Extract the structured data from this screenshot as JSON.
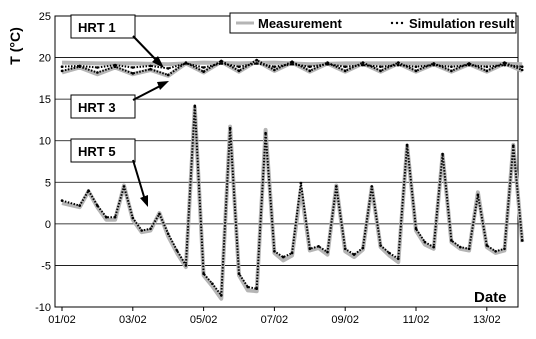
{
  "chart_data": {
    "type": "line",
    "title": "",
    "xlabel": "Date",
    "ylabel": "T (°C)",
    "ylim": [
      -10,
      25
    ],
    "yticks": [
      -10,
      -5,
      0,
      5,
      10,
      15,
      20,
      25
    ],
    "ytick_labels": [
      "-10",
      "-5",
      "0",
      "5",
      "10",
      "15",
      "20",
      "25"
    ],
    "xlim": [
      "01/02",
      "14/02"
    ],
    "xticks": [
      "01/02",
      "03/02",
      "05/02",
      "07/02",
      "09/02",
      "11/02",
      "13/02"
    ],
    "grid": "horizontal",
    "legend": {
      "placement": "top",
      "entries": [
        "Measurement",
        "Simulation result"
      ]
    },
    "annotations": [
      "HRT 1",
      "HRT 3",
      "HRT 5"
    ],
    "colors": {
      "measurement": "#b5b5b5",
      "simulation": "#000000",
      "grid": "#000000"
    },
    "series": [
      {
        "name": "Measurement",
        "curves": [
          {
            "label": "HRT 1",
            "points": [
              [
                "01/02",
                19.4
              ],
              [
                "02/02",
                19.3
              ],
              [
                "03/02",
                19.3
              ],
              [
                "04/02",
                19.2
              ],
              [
                "05/02",
                19.4
              ],
              [
                "06/02",
                19.3
              ],
              [
                "07/02",
                19.4
              ],
              [
                "08/02",
                19.2
              ],
              [
                "09/02",
                19.3
              ],
              [
                "10/02",
                19.3
              ],
              [
                "11/02",
                19.3
              ],
              [
                "12/02",
                19.3
              ],
              [
                "13/02",
                19.3
              ],
              [
                "14/02",
                19.2
              ]
            ]
          },
          {
            "label": "HRT 3",
            "points": [
              [
                "01/02",
                18.2
              ],
              [
                "01/12",
                18.8
              ],
              [
                "02/00",
                18.0
              ],
              [
                "02/12",
                18.8
              ],
              [
                "03/00",
                18.0
              ],
              [
                "03/12",
                18.5
              ],
              [
                "04/00",
                17.8
              ],
              [
                "04/12",
                19.3
              ],
              [
                "05/00",
                18.2
              ],
              [
                "05/12",
                19.5
              ],
              [
                "06/00",
                18.3
              ],
              [
                "06/12",
                19.6
              ],
              [
                "07/00",
                18.4
              ],
              [
                "07/12",
                19.4
              ],
              [
                "08/00",
                18.3
              ],
              [
                "08/12",
                19.3
              ],
              [
                "09/00",
                18.3
              ],
              [
                "09/12",
                19.3
              ],
              [
                "10/00",
                18.3
              ],
              [
                "10/12",
                19.3
              ],
              [
                "11/00",
                18.3
              ],
              [
                "11/12",
                19.2
              ],
              [
                "12/00",
                18.3
              ],
              [
                "12/12",
                19.2
              ],
              [
                "13/00",
                18.3
              ],
              [
                "13/12",
                19.3
              ],
              [
                "14/00",
                18.4
              ]
            ]
          },
          {
            "label": "HRT 5",
            "points": [
              [
                "01/02",
                2.5
              ],
              [
                "01/12",
                2.0
              ],
              [
                "01/18",
                3.9
              ],
              [
                "02/00",
                2.0
              ],
              [
                "02/06",
                0.5
              ],
              [
                "02/12",
                0.5
              ],
              [
                "02/18",
                4.6
              ],
              [
                "03/00",
                0.5
              ],
              [
                "03/06",
                -1.0
              ],
              [
                "03/12",
                -0.8
              ],
              [
                "03/18",
                1.3
              ],
              [
                "04/00",
                -1.5
              ],
              [
                "04/06",
                -3.5
              ],
              [
                "04/12",
                -5.2
              ],
              [
                "04/18",
                14.0
              ],
              [
                "05/00",
                -6.2
              ],
              [
                "05/06",
                -7.5
              ],
              [
                "05/12",
                -9.0
              ],
              [
                "05/18",
                11.7
              ],
              [
                "06/00",
                -6.2
              ],
              [
                "06/06",
                -8.0
              ],
              [
                "06/12",
                -8.1
              ],
              [
                "06/18",
                11.3
              ],
              [
                "07/00",
                -3.5
              ],
              [
                "07/06",
                -4.4
              ],
              [
                "07/12",
                -3.8
              ],
              [
                "07/18",
                4.2
              ],
              [
                "08/00",
                -3.2
              ],
              [
                "08/06",
                -2.9
              ],
              [
                "08/12",
                -3.7
              ],
              [
                "08/18",
                4.6
              ],
              [
                "09/00",
                -3.3
              ],
              [
                "09/06",
                -4.0
              ],
              [
                "09/12",
                -3.1
              ],
              [
                "09/18",
                4.4
              ],
              [
                "10/00",
                -2.8
              ],
              [
                "10/06",
                -3.8
              ],
              [
                "10/12",
                -4.6
              ],
              [
                "10/18",
                9.4
              ],
              [
                "11/00",
                -0.8
              ],
              [
                "11/06",
                -2.5
              ],
              [
                "11/12",
                -3.0
              ],
              [
                "11/18",
                8.3
              ],
              [
                "12/00",
                -2.2
              ],
              [
                "12/06",
                -3.0
              ],
              [
                "12/12",
                -3.2
              ],
              [
                "12/18",
                3.8
              ],
              [
                "13/00",
                -2.8
              ],
              [
                "13/06",
                -3.5
              ],
              [
                "13/12",
                -3.2
              ],
              [
                "13/18",
                9.5
              ],
              [
                "14/00",
                -2.2
              ]
            ]
          }
        ]
      },
      {
        "name": "Simulation result",
        "curves": [
          {
            "label": "HRT 1",
            "points": [
              [
                "01/02",
                18.9
              ],
              [
                "01/12",
                19.0
              ],
              [
                "02/00",
                18.8
              ],
              [
                "02/12",
                19.1
              ],
              [
                "03/00",
                18.8
              ],
              [
                "03/12",
                19.0
              ],
              [
                "04/00",
                18.7
              ],
              [
                "04/12",
                19.3
              ],
              [
                "05/00",
                18.8
              ],
              [
                "05/12",
                19.3
              ],
              [
                "06/00",
                18.9
              ],
              [
                "06/12",
                19.3
              ],
              [
                "07/00",
                18.9
              ],
              [
                "07/12",
                19.2
              ],
              [
                "08/00",
                18.9
              ],
              [
                "08/12",
                19.2
              ],
              [
                "09/00",
                18.9
              ],
              [
                "09/12",
                19.1
              ],
              [
                "10/00",
                18.9
              ],
              [
                "10/12",
                19.1
              ],
              [
                "11/00",
                18.9
              ],
              [
                "11/12",
                19.1
              ],
              [
                "12/00",
                18.9
              ],
              [
                "12/12",
                19.1
              ],
              [
                "13/00",
                18.9
              ],
              [
                "13/12",
                19.1
              ],
              [
                "14/00",
                18.9
              ]
            ]
          },
          {
            "label": "HRT 3",
            "points": [
              [
                "01/02",
                18.4
              ],
              [
                "01/12",
                18.9
              ],
              [
                "02/00",
                18.2
              ],
              [
                "02/12",
                18.9
              ],
              [
                "03/00",
                18.1
              ],
              [
                "03/12",
                18.6
              ],
              [
                "04/00",
                17.9
              ],
              [
                "04/12",
                19.4
              ],
              [
                "05/00",
                18.3
              ],
              [
                "05/12",
                19.6
              ],
              [
                "06/00",
                18.4
              ],
              [
                "06/12",
                19.7
              ],
              [
                "07/00",
                18.5
              ],
              [
                "07/12",
                19.5
              ],
              [
                "08/00",
                18.4
              ],
              [
                "08/12",
                19.4
              ],
              [
                "09/00",
                18.4
              ],
              [
                "09/12",
                19.4
              ],
              [
                "10/00",
                18.4
              ],
              [
                "10/12",
                19.4
              ],
              [
                "11/00",
                18.4
              ],
              [
                "11/12",
                19.3
              ],
              [
                "12/00",
                18.4
              ],
              [
                "12/12",
                19.3
              ],
              [
                "13/00",
                18.4
              ],
              [
                "13/12",
                19.4
              ],
              [
                "14/00",
                18.5
              ]
            ]
          },
          {
            "label": "HRT 5",
            "points": [
              [
                "01/02",
                2.8
              ],
              [
                "01/12",
                2.2
              ],
              [
                "01/18",
                4.0
              ],
              [
                "02/00",
                2.2
              ],
              [
                "02/06",
                0.8
              ],
              [
                "02/12",
                0.8
              ],
              [
                "02/18",
                4.5
              ],
              [
                "03/00",
                0.7
              ],
              [
                "03/06",
                -0.8
              ],
              [
                "03/12",
                -0.6
              ],
              [
                "03/18",
                1.2
              ],
              [
                "04/00",
                -1.2
              ],
              [
                "04/06",
                -3.2
              ],
              [
                "04/12",
                -5.0
              ],
              [
                "04/18",
                14.2
              ],
              [
                "05/00",
                -6.0
              ],
              [
                "05/06",
                -7.2
              ],
              [
                "05/12",
                -8.6
              ],
              [
                "05/18",
                11.5
              ],
              [
                "06/00",
                -6.0
              ],
              [
                "06/06",
                -7.6
              ],
              [
                "06/12",
                -7.8
              ],
              [
                "06/18",
                10.9
              ],
              [
                "07/00",
                -3.3
              ],
              [
                "07/06",
                -4.0
              ],
              [
                "07/12",
                -3.5
              ],
              [
                "07/18",
                4.9
              ],
              [
                "08/00",
                -3.0
              ],
              [
                "08/06",
                -2.7
              ],
              [
                "08/12",
                -3.4
              ],
              [
                "08/18",
                4.5
              ],
              [
                "09/00",
                -3.0
              ],
              [
                "09/06",
                -3.7
              ],
              [
                "09/12",
                -2.9
              ],
              [
                "09/18",
                4.5
              ],
              [
                "10/00",
                -2.6
              ],
              [
                "10/06",
                -3.5
              ],
              [
                "10/12",
                -4.2
              ],
              [
                "10/18",
                9.5
              ],
              [
                "11/00",
                -0.6
              ],
              [
                "11/06",
                -2.2
              ],
              [
                "11/12",
                -2.8
              ],
              [
                "11/18",
                8.4
              ],
              [
                "12/00",
                -2.0
              ],
              [
                "12/06",
                -2.8
              ],
              [
                "12/12",
                -3.0
              ],
              [
                "12/18",
                3.5
              ],
              [
                "13/00",
                -2.6
              ],
              [
                "13/06",
                -3.3
              ],
              [
                "13/12",
                -3.0
              ],
              [
                "13/18",
                9.4
              ],
              [
                "14/00",
                -2.0
              ]
            ]
          }
        ]
      }
    ]
  }
}
